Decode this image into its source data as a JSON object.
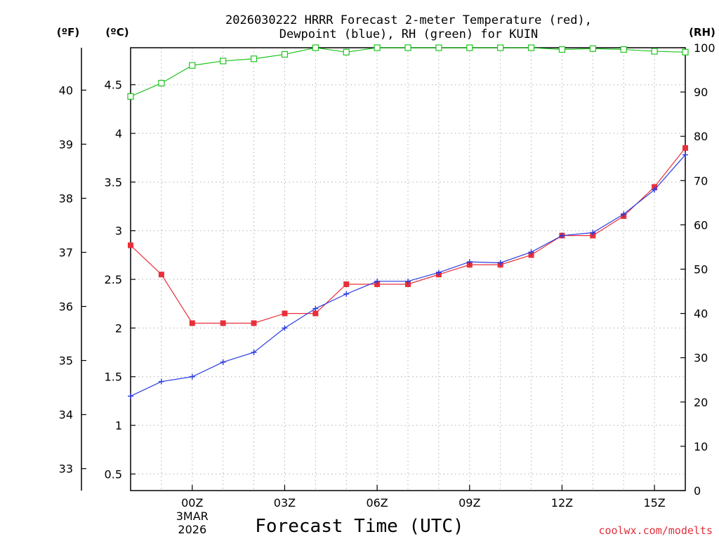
{
  "chart_data": {
    "type": "line",
    "title_line1": "2026030222 HRRR Forecast 2-meter Temperature (red),",
    "title_line2": "Dewpoint (blue), RH (green) for KUIN",
    "xlabel": "Forecast Time (UTC)",
    "credit": "coolwx.com/modelts",
    "units": {
      "fahrenheit": "(ºF)",
      "celsius": "(ºC)",
      "rh": "(RH)"
    },
    "x": [
      -2,
      -1,
      0,
      1,
      2,
      3,
      4,
      5,
      6,
      7,
      8,
      9,
      10,
      11,
      12,
      13,
      14,
      15,
      16
    ],
    "xlim": [
      -2,
      16
    ],
    "x_ticks": [
      {
        "x": 0,
        "label": "00Z",
        "sub1": "3MAR",
        "sub2": "2026"
      },
      {
        "x": 3,
        "label": "03Z"
      },
      {
        "x": 6,
        "label": "06Z"
      },
      {
        "x": 9,
        "label": "09Z"
      },
      {
        "x": 12,
        "label": "12Z"
      },
      {
        "x": 15,
        "label": "15Z"
      }
    ],
    "celsius_axis": {
      "range": [
        0.33,
        4.88
      ],
      "ticks": [
        {
          "value": 0.5,
          "label": "0.5"
        },
        {
          "value": 1,
          "label": "1"
        },
        {
          "value": 1.5,
          "label": "1.5"
        },
        {
          "value": 2,
          "label": "2"
        },
        {
          "value": 2.5,
          "label": "2.5"
        },
        {
          "value": 3,
          "label": "3"
        },
        {
          "value": 3.5,
          "label": "3.5"
        },
        {
          "value": 4,
          "label": "4"
        },
        {
          "value": 4.5,
          "label": "4.5"
        }
      ]
    },
    "fahrenheit_axis": {
      "ticks": [
        {
          "value": 33,
          "label": "33"
        },
        {
          "value": 34,
          "label": "34"
        },
        {
          "value": 35,
          "label": "35"
        },
        {
          "value": 36,
          "label": "36"
        },
        {
          "value": 37,
          "label": "37"
        },
        {
          "value": 38,
          "label": "38"
        },
        {
          "value": 39,
          "label": "39"
        },
        {
          "value": 40,
          "label": "40"
        }
      ]
    },
    "rh_axis": {
      "range": [
        0,
        100
      ],
      "ticks": [
        {
          "value": 0,
          "label": "0"
        },
        {
          "value": 10,
          "label": "10"
        },
        {
          "value": 20,
          "label": "20"
        },
        {
          "value": 30,
          "label": "30"
        },
        {
          "value": 40,
          "label": "40"
        },
        {
          "value": 50,
          "label": "50"
        },
        {
          "value": 60,
          "label": "60"
        },
        {
          "value": 70,
          "label": "70"
        },
        {
          "value": 80,
          "label": "80"
        },
        {
          "value": 90,
          "label": "90"
        },
        {
          "value": 100,
          "label": "100"
        }
      ]
    },
    "series": [
      {
        "name": "Temperature",
        "axis": "celsius",
        "color": "#e8303a",
        "marker": "filled-square",
        "values": [
          2.85,
          2.55,
          2.05,
          2.05,
          2.05,
          2.15,
          2.15,
          2.45,
          2.45,
          2.45,
          2.55,
          2.65,
          2.65,
          2.75,
          2.95,
          2.95,
          3.15,
          3.45,
          3.85
        ]
      },
      {
        "name": "Dewpoint",
        "axis": "celsius",
        "color": "#2a3be0",
        "marker": "plus",
        "values": [
          1.3,
          1.45,
          1.5,
          1.65,
          1.75,
          2.0,
          2.2,
          2.35,
          2.48,
          2.48,
          2.57,
          2.68,
          2.67,
          2.78,
          2.95,
          2.98,
          3.17,
          3.42,
          3.78
        ]
      },
      {
        "name": "RH",
        "axis": "rh",
        "color": "#1ec41e",
        "marker": "open-square",
        "values": [
          89,
          92,
          96,
          97,
          97.5,
          98.5,
          100,
          99,
          100,
          100,
          100,
          100,
          100,
          100,
          99.6,
          99.8,
          99.6,
          99.2,
          99
        ]
      }
    ]
  }
}
